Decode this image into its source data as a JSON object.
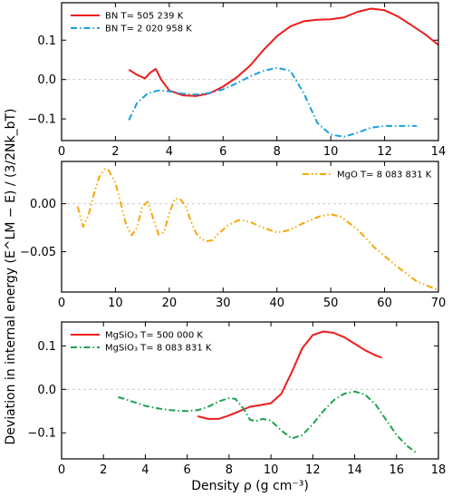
{
  "figure": {
    "ylabel": "Deviation in internal energy (E^LM − E) / (3/2Nk_bT)",
    "xlabel": "Density ρ (g cm⁻³)"
  },
  "chart_data": [
    {
      "type": "line",
      "name": "panel-bn",
      "xlim": [
        0,
        14
      ],
      "ylim": [
        -0.155,
        0.195
      ],
      "xticks": [
        "0",
        "2",
        "4",
        "6",
        "8",
        "10",
        "12",
        "14"
      ],
      "yticks": [
        0.1,
        0.0,
        -0.1
      ],
      "ytick_labels": [
        "0.1",
        "0.0",
        "−0.1"
      ],
      "legend_position": "top-left",
      "series": [
        {
          "name": "BN T=  505 239 K",
          "color": "#ee1c1c",
          "dash": "solid",
          "x": [
            2.5,
            2.8,
            3.1,
            3.3,
            3.5,
            3.7,
            4.0,
            4.5,
            5.0,
            5.5,
            6.0,
            6.5,
            7.0,
            7.5,
            8.0,
            8.5,
            9.0,
            9.5,
            10.0,
            10.5,
            11.0,
            11.5,
            12.0,
            12.5,
            13.0,
            13.5,
            14.0
          ],
          "y": [
            0.025,
            0.012,
            0.003,
            0.018,
            0.027,
            0.0,
            -0.028,
            -0.04,
            -0.042,
            -0.035,
            -0.018,
            0.005,
            0.035,
            0.075,
            0.11,
            0.135,
            0.148,
            0.152,
            0.153,
            0.158,
            0.172,
            0.18,
            0.176,
            0.16,
            0.138,
            0.115,
            0.088
          ]
        },
        {
          "name": "BN T= 2 020 958 K",
          "color": "#1aa0d8",
          "dash": "dashdot",
          "x": [
            2.5,
            2.8,
            3.2,
            3.6,
            4.0,
            4.5,
            5.0,
            5.5,
            6.0,
            6.5,
            7.0,
            7.5,
            8.0,
            8.5,
            9.0,
            9.5,
            10.0,
            10.5,
            11.0,
            11.5,
            12.0,
            12.5,
            13.0,
            13.2
          ],
          "y": [
            -0.103,
            -0.06,
            -0.035,
            -0.028,
            -0.03,
            -0.036,
            -0.038,
            -0.034,
            -0.025,
            -0.01,
            0.008,
            0.022,
            0.03,
            0.022,
            -0.035,
            -0.11,
            -0.14,
            -0.145,
            -0.135,
            -0.122,
            -0.118,
            -0.118,
            -0.118,
            -0.118
          ]
        }
      ]
    },
    {
      "type": "line",
      "name": "panel-mgo",
      "xlim": [
        0,
        70
      ],
      "ylim": [
        -0.092,
        0.044
      ],
      "xticks": [
        "0",
        "10",
        "20",
        "30",
        "40",
        "50",
        "60",
        "70"
      ],
      "yticks": [
        0.0,
        -0.05
      ],
      "ytick_labels": [
        "0.00",
        "−0.05"
      ],
      "legend_position": "top-right",
      "series": [
        {
          "name": "MgO T= 8 083 831 K",
          "color": "#f7a800",
          "dash": "dashdotdot",
          "x": [
            3.0,
            4.0,
            5.0,
            6.0,
            7.0,
            8.0,
            8.7,
            10.0,
            11.0,
            12.0,
            13.0,
            14.0,
            15.0,
            16.0,
            17.0,
            18.0,
            19.0,
            20.0,
            21.0,
            22.0,
            23.0,
            24.0,
            25.0,
            26.0,
            27.0,
            28.0,
            29.0,
            31.0,
            33.0,
            35.0,
            37.0,
            40.0,
            42.0,
            45.0,
            48.0,
            50.0,
            52.0,
            55.0,
            58.0,
            62.0,
            66.0,
            70.0
          ],
          "y": [
            -0.003,
            -0.024,
            -0.012,
            0.01,
            0.028,
            0.036,
            0.035,
            0.022,
            0.0,
            -0.022,
            -0.033,
            -0.025,
            -0.003,
            0.002,
            -0.015,
            -0.032,
            -0.03,
            -0.01,
            0.005,
            0.005,
            -0.002,
            -0.018,
            -0.031,
            -0.037,
            -0.039,
            -0.038,
            -0.032,
            -0.022,
            -0.017,
            -0.019,
            -0.024,
            -0.03,
            -0.028,
            -0.02,
            -0.013,
            -0.011,
            -0.014,
            -0.027,
            -0.045,
            -0.064,
            -0.081,
            -0.09
          ]
        }
      ]
    },
    {
      "type": "line",
      "name": "panel-mgsio3",
      "xlim": [
        0,
        18
      ],
      "ylim": [
        -0.16,
        0.155
      ],
      "xticks": [
        "0",
        "2",
        "4",
        "6",
        "8",
        "10",
        "12",
        "14",
        "16",
        "18"
      ],
      "yticks": [
        0.1,
        0.0,
        -0.1
      ],
      "ytick_labels": [
        "0.1",
        "0.0",
        "−0.1"
      ],
      "legend_position": "top-left",
      "series": [
        {
          "name": "MgSiO₃ T=  500 000 K",
          "color": "#ee1c1c",
          "dash": "solid",
          "x": [
            6.5,
            7.0,
            7.5,
            8.0,
            8.5,
            9.0,
            9.5,
            10.0,
            10.5,
            11.0,
            11.5,
            12.0,
            12.5,
            13.0,
            13.5,
            14.0,
            14.5,
            15.0,
            15.3
          ],
          "y": [
            -0.062,
            -0.068,
            -0.068,
            -0.06,
            -0.05,
            -0.04,
            -0.036,
            -0.032,
            -0.01,
            0.04,
            0.095,
            0.125,
            0.133,
            0.13,
            0.12,
            0.105,
            0.09,
            0.078,
            0.073
          ]
        },
        {
          "name": "MgSiO₃ T= 8 083 831 K",
          "color": "#1aa34a",
          "dash": "dashdot",
          "x": [
            2.7,
            3.0,
            3.5,
            4.0,
            4.5,
            5.0,
            5.5,
            6.0,
            6.5,
            7.0,
            7.5,
            8.0,
            8.3,
            8.7,
            9.0,
            9.3,
            9.6,
            10.0,
            10.5,
            11.0,
            11.5,
            12.0,
            12.5,
            13.0,
            13.5,
            14.0,
            14.5,
            15.0,
            15.5,
            16.0,
            16.5,
            17.0
          ],
          "y": [
            -0.018,
            -0.022,
            -0.03,
            -0.038,
            -0.043,
            -0.047,
            -0.049,
            -0.05,
            -0.048,
            -0.04,
            -0.028,
            -0.02,
            -0.022,
            -0.045,
            -0.07,
            -0.073,
            -0.068,
            -0.072,
            -0.095,
            -0.113,
            -0.105,
            -0.08,
            -0.05,
            -0.025,
            -0.01,
            -0.005,
            -0.012,
            -0.035,
            -0.07,
            -0.105,
            -0.13,
            -0.148
          ]
        }
      ]
    }
  ]
}
